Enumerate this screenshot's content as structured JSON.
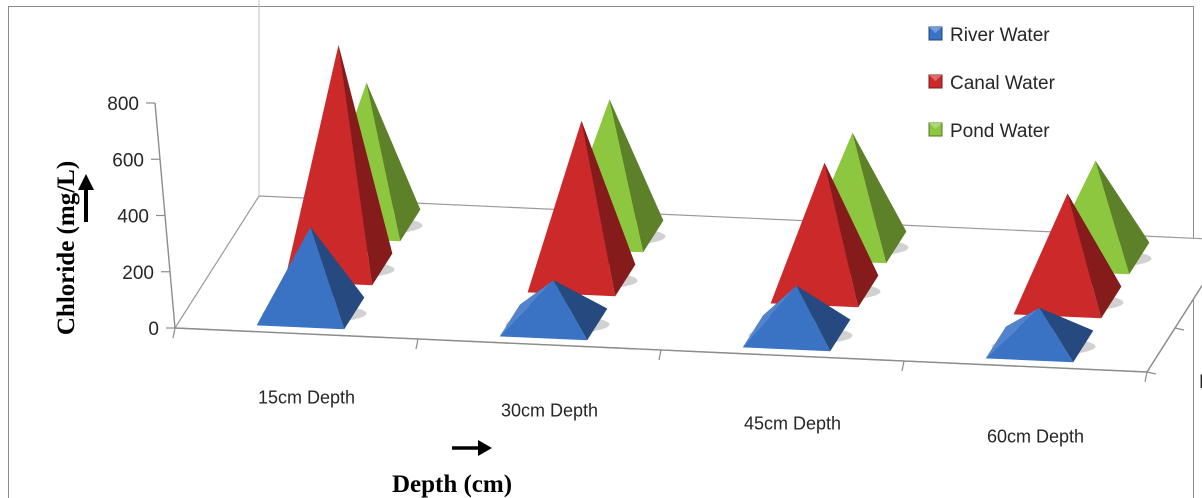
{
  "chart_data": {
    "type": "bar",
    "subtype": "3d-pyramid",
    "categories": [
      "15cm Depth",
      "30cm Depth",
      "45cm Depth",
      "60cm Depth"
    ],
    "series": [
      {
        "name": "River Water",
        "values": [
          300,
          150,
          170,
          130
        ]
      },
      {
        "name": "Canal Water",
        "values": [
          790,
          560,
          450,
          380
        ]
      },
      {
        "name": "Pond Water",
        "values": [
          500,
          480,
          400,
          340
        ]
      }
    ],
    "colors": {
      "River Water": "#3a72c4",
      "Canal Water": "#cc2a2a",
      "Pond Water": "#8dc63f"
    },
    "xlabel": "Depth (cm)",
    "ylabel": "Chloride (mg/L)",
    "ylim": [
      0,
      800
    ],
    "yticks": [
      0,
      200,
      400,
      600,
      800
    ],
    "depth_labels": [
      "River Water",
      "Canal Water",
      "Pond Water"
    ],
    "legend": [
      "River Water",
      "Canal Water",
      "Pond Water"
    ],
    "legend_position": "top-right",
    "grid": false
  }
}
